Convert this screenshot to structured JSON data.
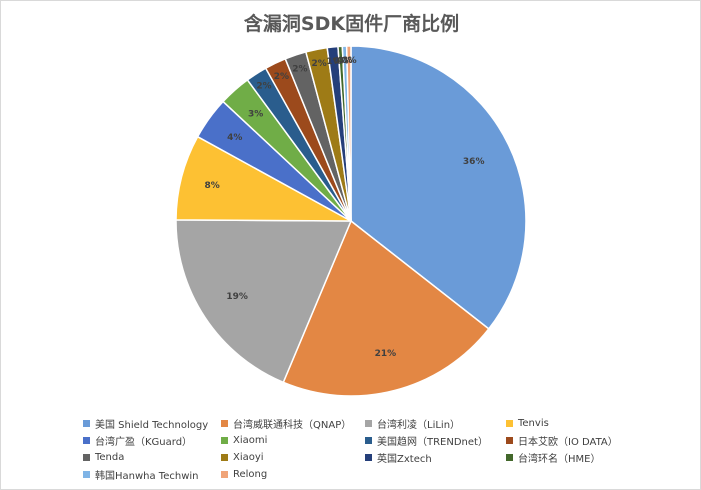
{
  "chart_data": {
    "type": "pie",
    "title": "含漏洞SDK固件厂商比例",
    "legend_position": "bottom",
    "series": [
      {
        "name": "美国 Shield Technology",
        "value": 36,
        "label": "36%",
        "color": "#6a9bd8"
      },
      {
        "name": "台湾威联通科技（QNAP）",
        "value": 21,
        "label": "21%",
        "color": "#e38744"
      },
      {
        "name": "台湾利凌（LiLin）",
        "value": 19,
        "label": "19%",
        "color": "#a5a5a5"
      },
      {
        "name": "Tenvis",
        "value": 8,
        "label": "8%",
        "color": "#fdc133"
      },
      {
        "name": "台湾广盈（KGuard）",
        "value": 4,
        "label": "4%",
        "color": "#4a70c9"
      },
      {
        "name": "Xiaomi",
        "value": 3,
        "label": "3%",
        "color": "#70ad47"
      },
      {
        "name": "美国趋网（TRENDnet）",
        "value": 2,
        "label": "2%",
        "color": "#2a5d8d"
      },
      {
        "name": "日本艾欧（IO DATA）",
        "value": 2,
        "label": "2%",
        "color": "#9c4a1c"
      },
      {
        "name": "Tenda",
        "value": 2,
        "label": "2%",
        "color": "#636363"
      },
      {
        "name": "Xiaoyi",
        "value": 2,
        "label": "2%",
        "color": "#9e7b16"
      },
      {
        "name": "英国Zxtech",
        "value": 1,
        "label": "1%",
        "color": "#253f7a"
      },
      {
        "name": "台湾环名（HME）",
        "value": 0.4,
        "label": "0%",
        "color": "#43682b"
      },
      {
        "name": "韩国Hanwha Techwin",
        "value": 0.4,
        "label": "0%",
        "color": "#7fb4e6"
      },
      {
        "name": "Relong",
        "value": 0.4,
        "label": "0%",
        "color": "#f0a478"
      }
    ]
  }
}
